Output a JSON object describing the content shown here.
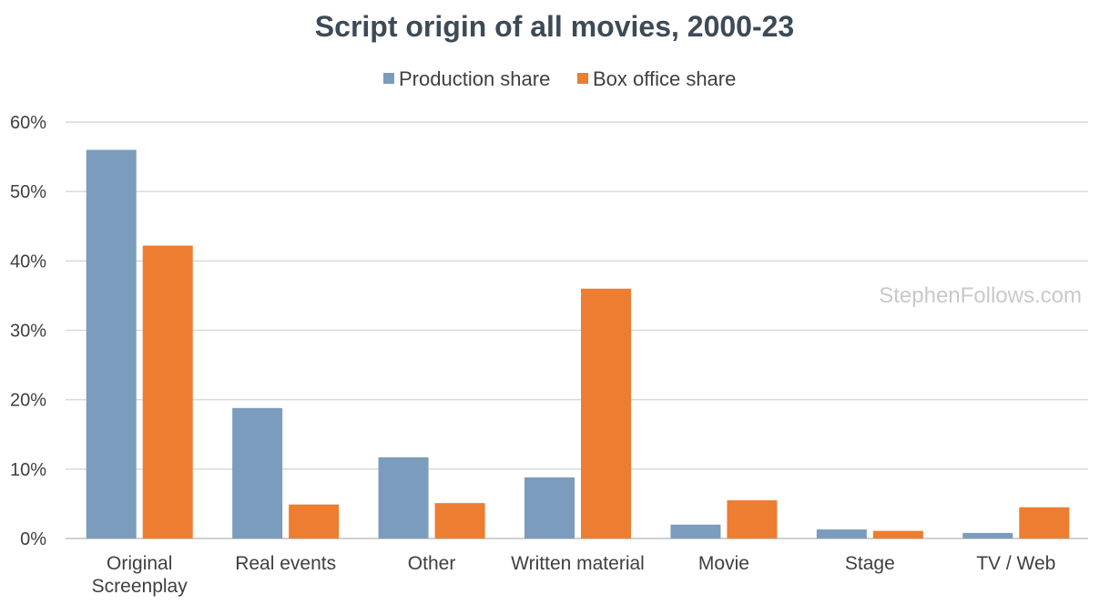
{
  "chart_data": {
    "type": "bar",
    "title": "Script origin of all movies, 2000-23",
    "categories": [
      [
        "Original",
        "Screenplay"
      ],
      [
        "Real events"
      ],
      [
        "Other"
      ],
      [
        "Written material"
      ],
      [
        "Movie"
      ],
      [
        "Stage"
      ],
      [
        "TV / Web"
      ]
    ],
    "series": [
      {
        "name": "Production share",
        "color": "#7b9cbc",
        "values": [
          56,
          18.8,
          11.7,
          8.8,
          2.0,
          1.3,
          0.8
        ]
      },
      {
        "name": "Box office share",
        "color": "#ed7d31",
        "values": [
          42.2,
          4.9,
          5.1,
          36.0,
          5.5,
          1.1,
          4.5
        ]
      }
    ],
    "ylim": [
      0,
      60
    ],
    "yticks": [
      "0%",
      "10%",
      "20%",
      "30%",
      "40%",
      "50%",
      "60%"
    ],
    "ytick_values": [
      0,
      10,
      20,
      30,
      40,
      50,
      60
    ],
    "grid": true,
    "legend_position": "top-center",
    "watermark": "StephenFollows.com"
  }
}
